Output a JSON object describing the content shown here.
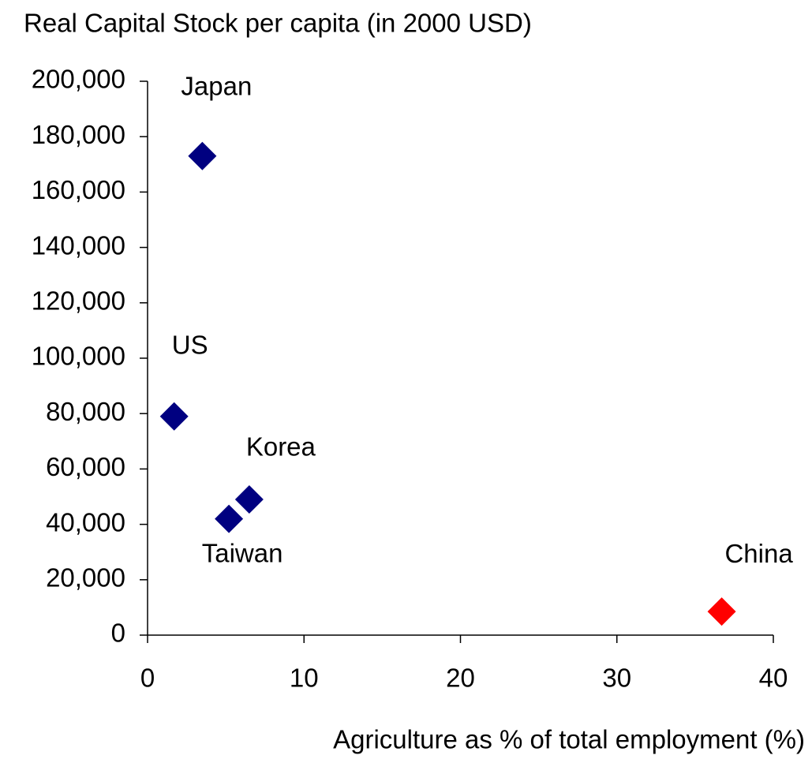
{
  "chart_data": {
    "type": "scatter",
    "title": "Real Capital Stock per capita (in 2000 USD)",
    "x_label": "Agriculture as % of total employment (%)",
    "labels": [
      "Japan",
      "US",
      "Korea",
      "Taiwan",
      "China"
    ],
    "x": [
      3.5,
      1.7,
      6.5,
      5.2,
      36.7
    ],
    "values": [
      173000,
      79000,
      49000,
      42000,
      8500
    ],
    "colors": [
      "#000080",
      "#000080",
      "#000080",
      "#000080",
      "#ff0000"
    ],
    "xlim": [
      0,
      40
    ],
    "xticks": [
      0,
      10,
      20,
      30,
      40
    ],
    "ylim": [
      0,
      200000
    ],
    "yticks": [
      0,
      {
        "value": 20000,
        "label": "20,000"
      },
      {
        "value": 40000,
        "label": "40,000"
      },
      {
        "value": 60000,
        "label": "60,000"
      },
      {
        "value": 80000,
        "label": "80,000"
      },
      {
        "value": 100000,
        "label": "100,000"
      },
      {
        "value": 120000,
        "label": "120,000"
      },
      {
        "value": 140000,
        "label": "140,000"
      },
      {
        "value": 160000,
        "label": "160,000"
      },
      {
        "value": 180000,
        "label": "180,000"
      },
      {
        "value": 200000,
        "label": "200,000"
      }
    ]
  }
}
